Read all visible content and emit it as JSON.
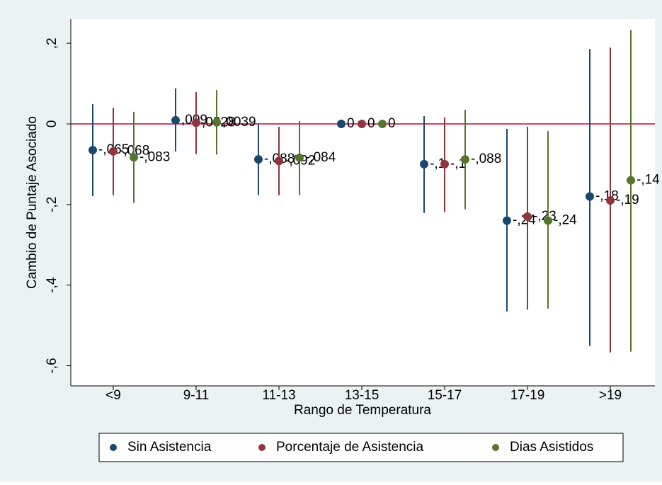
{
  "chart_data": {
    "type": "coefplot",
    "xlabel": "Rango de Temperatura",
    "ylabel": "Cambio de Puntaje Asociado",
    "categories": [
      "<9",
      "9-11",
      "11-13",
      "13-15",
      "15-17",
      "17-19",
      ">19"
    ],
    "ylim": [
      -0.65,
      0.26
    ],
    "yticks": [
      {
        "value": 0.2,
        "label": ",2"
      },
      0,
      {
        "value": -0.2,
        "label": "-,2"
      },
      {
        "value": -0.4,
        "label": "-,4"
      },
      {
        "value": -0.6,
        "label": "-,6"
      }
    ],
    "reference_line": 0,
    "reference_color": "#c10534",
    "series": [
      {
        "name": "Sin Asistencia",
        "color": "#1a476f",
        "values": [
          -0.065,
          0.009,
          -0.088,
          0,
          -0.1,
          -0.24,
          -0.18
        ],
        "value_labels": [
          "-,065",
          ",009",
          "-,088",
          "0",
          "-,1",
          "-,24",
          "-,18"
        ],
        "ci_low": [
          -0.179,
          -0.068,
          -0.177,
          null,
          -0.221,
          -0.465,
          -0.551
        ],
        "ci_high": [
          0.049,
          0.088,
          0.0,
          null,
          0.019,
          -0.012,
          0.186
        ]
      },
      {
        "name": "Porcentaje de Asistencia",
        "color": "#90353b",
        "values": [
          -0.068,
          0.0028,
          -0.092,
          0,
          -0.1,
          -0.23,
          -0.19
        ],
        "value_labels": [
          "-,068",
          ",0028",
          "-,092",
          "0",
          "-,1",
          "-,23",
          "-,19"
        ],
        "ci_low": [
          -0.177,
          -0.075,
          -0.177,
          null,
          -0.219,
          -0.461,
          -0.567
        ],
        "ci_high": [
          0.04,
          0.079,
          -0.007,
          null,
          0.016,
          -0.007,
          0.189
        ]
      },
      {
        "name": "Dias Asistidos",
        "color": "#55752f",
        "values": [
          -0.083,
          0.0039,
          -0.084,
          0,
          -0.088,
          -0.24,
          -0.14
        ],
        "value_labels": [
          "-,083",
          ",0039",
          "-,084",
          "0",
          "-,088",
          "-,24",
          "-,14"
        ],
        "ci_low": [
          -0.196,
          -0.076,
          -0.177,
          null,
          -0.212,
          -0.458,
          -0.565
        ],
        "ci_high": [
          0.03,
          0.084,
          0.007,
          null,
          0.035,
          -0.018,
          0.233
        ]
      }
    ]
  }
}
